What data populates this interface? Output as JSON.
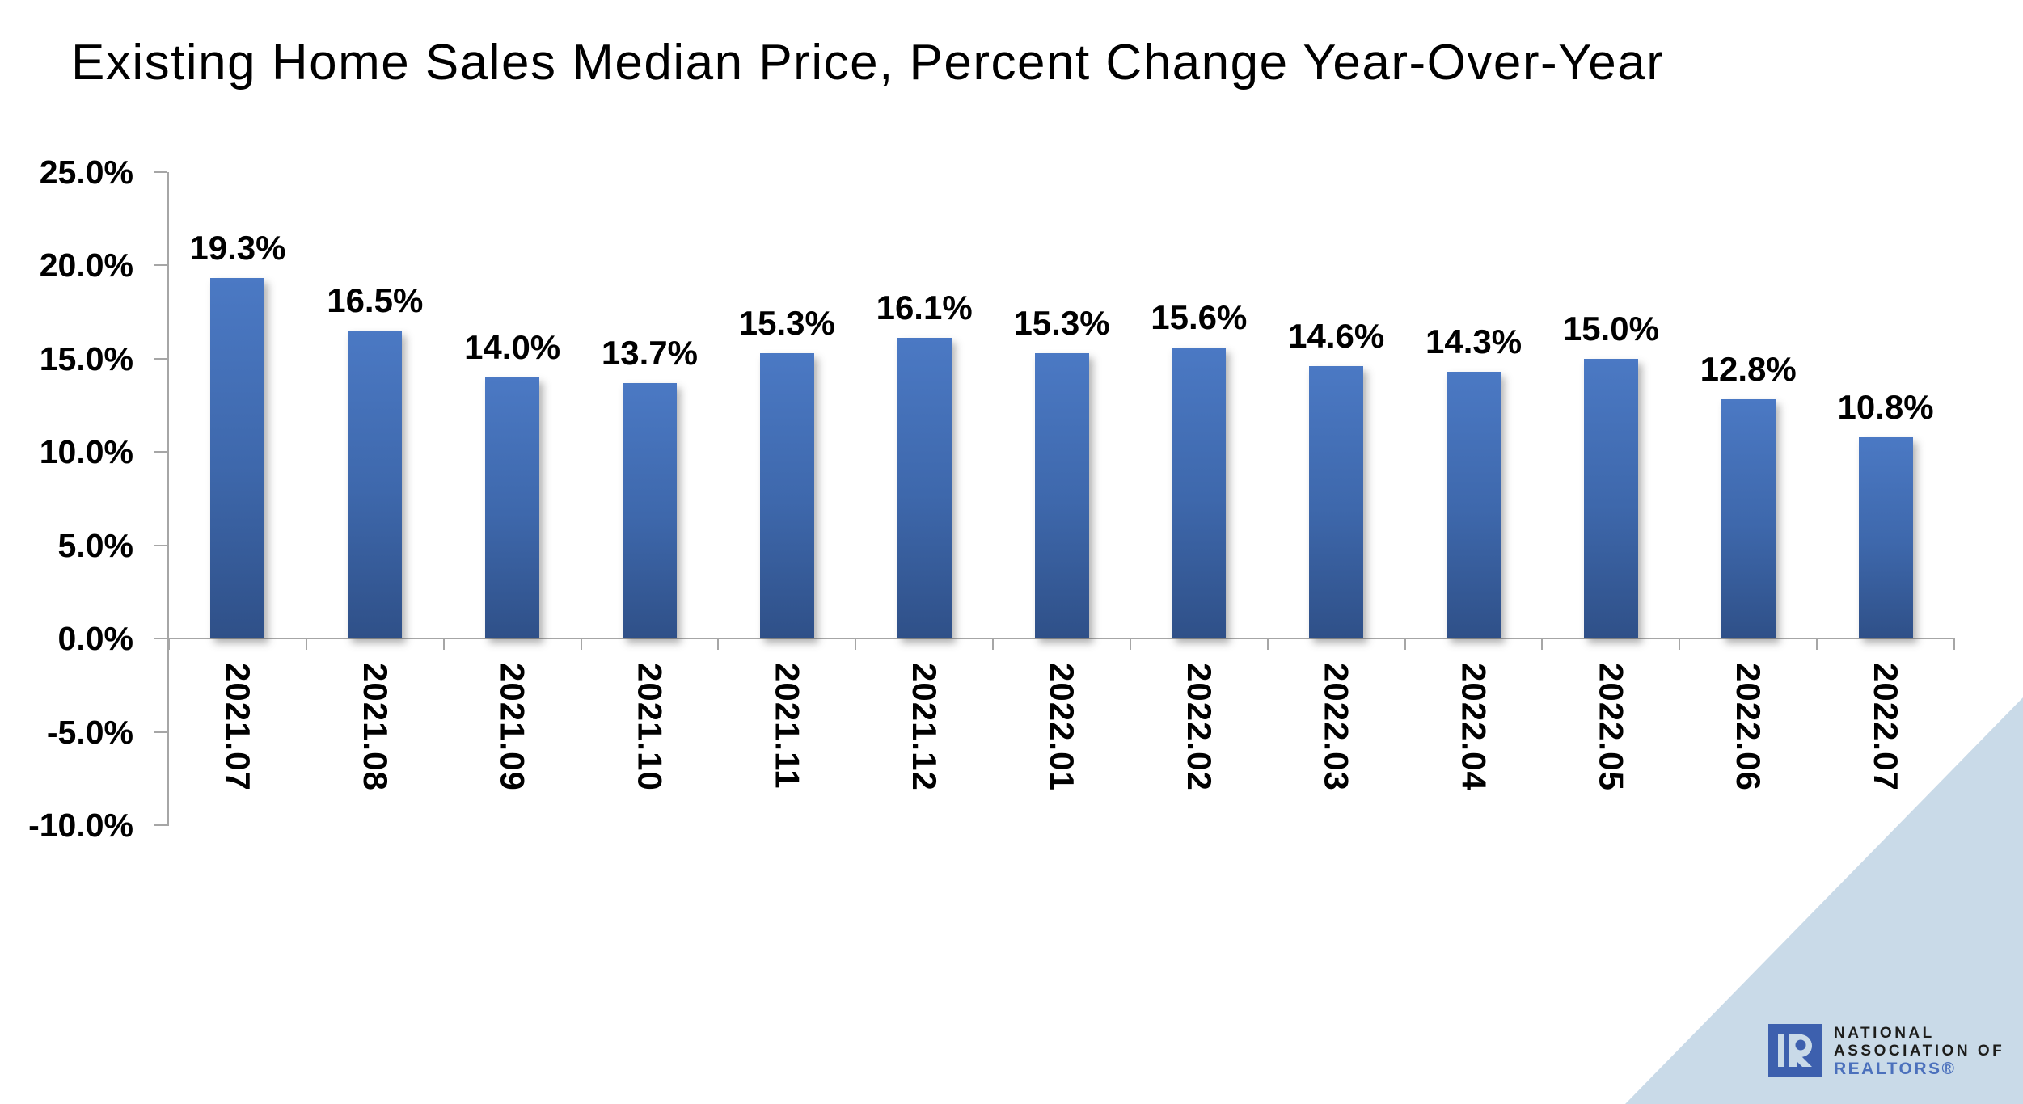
{
  "title": "Existing Home Sales Median Price, Percent Change Year-Over-Year",
  "chart_data": {
    "type": "bar",
    "title": "Existing Home Sales Median Price, Percent Change Year-Over-Year",
    "categories": [
      "2021.07",
      "2021.08",
      "2021.09",
      "2021.10",
      "2021.11",
      "2021.12",
      "2022.01",
      "2022.02",
      "2022.03",
      "2022.04",
      "2022.05",
      "2022.06",
      "2022.07"
    ],
    "values": [
      19.3,
      16.5,
      14.0,
      13.7,
      15.3,
      16.1,
      15.3,
      15.6,
      14.6,
      14.3,
      15.0,
      12.8,
      10.8
    ],
    "value_labels": [
      "19.3%",
      "16.5%",
      "14.0%",
      "13.7%",
      "15.3%",
      "16.1%",
      "15.3%",
      "15.6%",
      "14.6%",
      "14.3%",
      "15.0%",
      "12.8%",
      "10.8%"
    ],
    "xlabel": "",
    "ylabel": "",
    "ylim": [
      -10,
      25
    ],
    "y_ticks": [
      {
        "label": "25.0%",
        "value": 25
      },
      {
        "label": "20.0%",
        "value": 20
      },
      {
        "label": "15.0%",
        "value": 15
      },
      {
        "label": "10.0%",
        "value": 10
      },
      {
        "label": "5.0%",
        "value": 5
      },
      {
        "label": "0.0%",
        "value": 0
      },
      {
        "label": "-5.0%",
        "value": -5
      },
      {
        "label": "-10.0%",
        "value": -10
      }
    ],
    "grid": "off",
    "legend": "none",
    "bar_color_top": "#4b79c4",
    "bar_color_bottom": "#2f5088",
    "axis_color": "#a6a6a6"
  },
  "logo": {
    "line1": "NATIONAL",
    "line2": "ASSOCIATION OF",
    "line3": "REALTORS®",
    "mark_blue": "#3d60ae",
    "realtors_blue": "#4b70bc"
  },
  "decoration": {
    "triangle_color": "#c9dae8"
  }
}
